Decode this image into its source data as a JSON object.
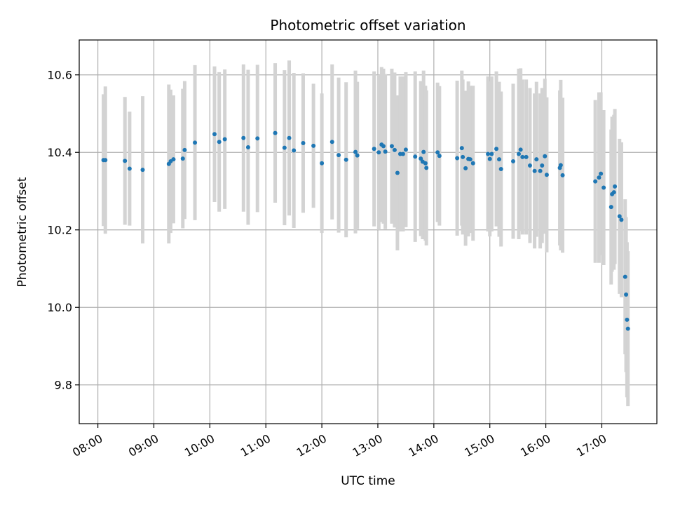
{
  "chart_data": {
    "type": "scatter",
    "title": "Photometric offset variation",
    "xlabel": "UTC time",
    "ylabel": "Photometric offset",
    "xlim": [
      "07:40",
      "17:59"
    ],
    "ylim": [
      9.7,
      10.69
    ],
    "grid": true,
    "x_ticks": [
      "08:00",
      "09:00",
      "10:00",
      "11:00",
      "12:00",
      "13:00",
      "14:00",
      "15:00",
      "16:00",
      "17:00"
    ],
    "y_ticks": [
      "9.8",
      "10.0",
      "10.2",
      "10.4",
      "10.6"
    ],
    "colors": {
      "point": "#1f77b4",
      "errorbar": "#d3d3d3",
      "grid": "#b0b0b0"
    },
    "series": [
      {
        "x": [
          "08:06",
          "08:08",
          "08:29",
          "08:34",
          "08:48",
          "09:16",
          "09:18",
          "09:21",
          "09:31",
          "09:33",
          "09:44",
          "10:05",
          "10:10",
          "10:16",
          "10:36",
          "10:41",
          "10:51",
          "11:10",
          "11:20",
          "11:25",
          "11:30",
          "11:40",
          "11:51",
          "12:00",
          "12:11",
          "12:18",
          "12:26",
          "12:36",
          "12:38",
          "12:56",
          "13:01",
          "13:04",
          "13:06",
          "13:08",
          "13:15",
          "13:18",
          "13:21",
          "13:24",
          "13:27",
          "13:30",
          "13:40",
          "13:46",
          "13:48",
          "13:49",
          "13:51",
          "13:52",
          "14:04",
          "14:06",
          "14:25",
          "14:30",
          "14:31",
          "14:34",
          "14:37",
          "14:39",
          "14:42",
          "14:58",
          "15:00",
          "15:02",
          "15:07",
          "15:10",
          "15:12",
          "15:25",
          "15:31",
          "15:33",
          "15:35",
          "15:39",
          "15:43",
          "15:48",
          "15:50",
          "15:54",
          "15:56",
          "15:59",
          "16:01",
          "16:15",
          "16:16",
          "16:18",
          "16:53",
          "16:57",
          "16:59",
          "17:02",
          "17:10",
          "17:11",
          "17:13",
          "17:14",
          "17:19",
          "17:21",
          "17:25",
          "17:26",
          "17:27",
          "17:28"
        ],
        "y": [
          10.38,
          10.38,
          10.378,
          10.358,
          10.355,
          10.37,
          10.377,
          10.382,
          10.384,
          10.406,
          10.425,
          10.447,
          10.427,
          10.434,
          10.437,
          10.413,
          10.436,
          10.45,
          10.412,
          10.437,
          10.405,
          10.424,
          10.417,
          10.372,
          10.427,
          10.393,
          10.381,
          10.401,
          10.392,
          10.409,
          10.4,
          10.42,
          10.416,
          10.402,
          10.416,
          10.406,
          10.347,
          10.396,
          10.396,
          10.407,
          10.389,
          10.384,
          10.376,
          10.401,
          10.372,
          10.36,
          10.4,
          10.391,
          10.385,
          10.411,
          10.388,
          10.359,
          10.383,
          10.382,
          10.372,
          10.396,
          10.383,
          10.396,
          10.409,
          10.382,
          10.357,
          10.377,
          10.396,
          10.407,
          10.388,
          10.388,
          10.366,
          10.352,
          10.382,
          10.352,
          10.366,
          10.39,
          10.342,
          10.36,
          10.367,
          10.341,
          10.325,
          10.335,
          10.345,
          10.309,
          10.259,
          10.292,
          10.297,
          10.312,
          10.235,
          10.226,
          10.079,
          10.033,
          9.968,
          9.945
        ],
        "err": [
          0.17,
          0.19,
          0.165,
          0.147,
          0.19,
          0.205,
          0.185,
          0.165,
          0.18,
          0.178,
          0.2,
          0.175,
          0.18,
          0.18,
          0.19,
          0.2,
          0.19,
          0.18,
          0.2,
          0.2,
          0.2,
          0.18,
          0.16,
          0.18,
          0.2,
          0.2,
          0.2,
          0.21,
          0.19,
          0.2,
          0.2,
          0.2,
          0.2,
          0.2,
          0.2,
          0.2,
          0.2,
          0.2,
          0.2,
          0.2,
          0.22,
          0.2,
          0.2,
          0.21,
          0.2,
          0.2,
          0.18,
          0.18,
          0.2,
          0.2,
          0.2,
          0.2,
          0.2,
          0.19,
          0.2,
          0.2,
          0.2,
          0.2,
          0.2,
          0.2,
          0.2,
          0.2,
          0.22,
          0.21,
          0.2,
          0.2,
          0.2,
          0.2,
          0.2,
          0.2,
          0.2,
          0.2,
          0.2,
          0.2,
          0.22,
          0.2,
          0.21,
          0.22,
          0.21,
          0.2,
          0.2,
          0.2,
          0.2,
          0.2,
          0.2,
          0.2,
          0.2,
          0.2,
          0.2,
          0.2
        ]
      }
    ]
  }
}
